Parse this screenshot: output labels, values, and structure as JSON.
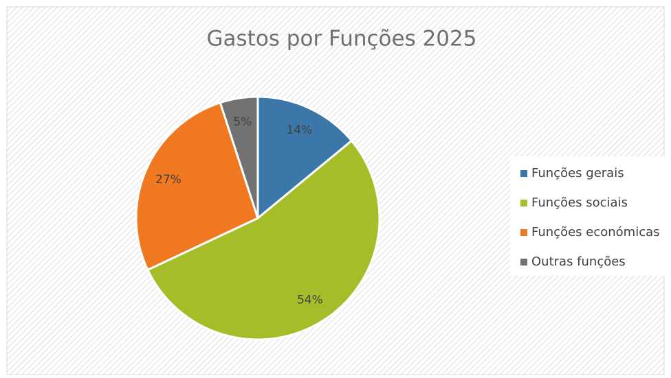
{
  "chart_data": {
    "type": "pie",
    "title": "Gastos por Funções 2025",
    "categories": [
      "Funções gerais",
      "Funções sociais",
      "Funções económicas",
      "Outras funções"
    ],
    "values": [
      14,
      54,
      27,
      5
    ],
    "value_labels": [
      "14%",
      "54%",
      "27%",
      "5%"
    ],
    "colors": [
      "#3b78a9",
      "#a6bd2a",
      "#f07820",
      "#727272"
    ],
    "legend": "right"
  }
}
